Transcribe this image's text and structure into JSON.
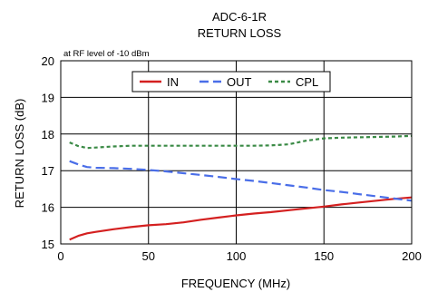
{
  "chart_data": {
    "type": "line",
    "title": "ADC-6-1R",
    "subtitle": "RETURN LOSS",
    "annotation": "at RF level of -10 dBm",
    "xlabel": "FREQUENCY (MHz)",
    "ylabel": "RETURN LOSS (dB)",
    "xlim": [
      0,
      200
    ],
    "ylim": [
      15,
      20
    ],
    "xticks": [
      0,
      50,
      100,
      150,
      200
    ],
    "yticks": [
      15,
      16,
      17,
      18,
      19,
      20
    ],
    "grid": true,
    "legend_position": "top-right",
    "series": [
      {
        "name": "IN",
        "color": "#d42020",
        "style": "solid",
        "points": [
          [
            5,
            15.12
          ],
          [
            10,
            15.22
          ],
          [
            15,
            15.29
          ],
          [
            20,
            15.33
          ],
          [
            30,
            15.4
          ],
          [
            40,
            15.46
          ],
          [
            50,
            15.51
          ],
          [
            60,
            15.54
          ],
          [
            70,
            15.59
          ],
          [
            80,
            15.66
          ],
          [
            90,
            15.72
          ],
          [
            100,
            15.78
          ],
          [
            110,
            15.83
          ],
          [
            120,
            15.87
          ],
          [
            130,
            15.92
          ],
          [
            140,
            15.97
          ],
          [
            150,
            16.02
          ],
          [
            160,
            16.08
          ],
          [
            170,
            16.13
          ],
          [
            180,
            16.18
          ],
          [
            190,
            16.23
          ],
          [
            200,
            16.27
          ]
        ]
      },
      {
        "name": "OUT",
        "color": "#4a6ee8",
        "style": "dashed",
        "points": [
          [
            5,
            17.26
          ],
          [
            10,
            17.17
          ],
          [
            15,
            17.1
          ],
          [
            20,
            17.08
          ],
          [
            30,
            17.07
          ],
          [
            40,
            17.05
          ],
          [
            50,
            17.02
          ],
          [
            60,
            16.98
          ],
          [
            70,
            16.93
          ],
          [
            80,
            16.88
          ],
          [
            90,
            16.83
          ],
          [
            100,
            16.77
          ],
          [
            110,
            16.72
          ],
          [
            120,
            16.66
          ],
          [
            130,
            16.6
          ],
          [
            140,
            16.54
          ],
          [
            150,
            16.47
          ],
          [
            160,
            16.42
          ],
          [
            170,
            16.36
          ],
          [
            180,
            16.3
          ],
          [
            190,
            16.24
          ],
          [
            200,
            16.18
          ]
        ]
      },
      {
        "name": "CPL",
        "color": "#3a8a45",
        "style": "dotted",
        "points": [
          [
            5,
            17.77
          ],
          [
            10,
            17.67
          ],
          [
            15,
            17.62
          ],
          [
            20,
            17.63
          ],
          [
            30,
            17.66
          ],
          [
            40,
            17.68
          ],
          [
            50,
            17.68
          ],
          [
            60,
            17.68
          ],
          [
            70,
            17.68
          ],
          [
            80,
            17.68
          ],
          [
            90,
            17.68
          ],
          [
            100,
            17.68
          ],
          [
            110,
            17.68
          ],
          [
            120,
            17.69
          ],
          [
            130,
            17.72
          ],
          [
            140,
            17.82
          ],
          [
            150,
            17.88
          ],
          [
            160,
            17.9
          ],
          [
            170,
            17.91
          ],
          [
            180,
            17.92
          ],
          [
            190,
            17.93
          ],
          [
            200,
            17.95
          ]
        ]
      }
    ]
  }
}
